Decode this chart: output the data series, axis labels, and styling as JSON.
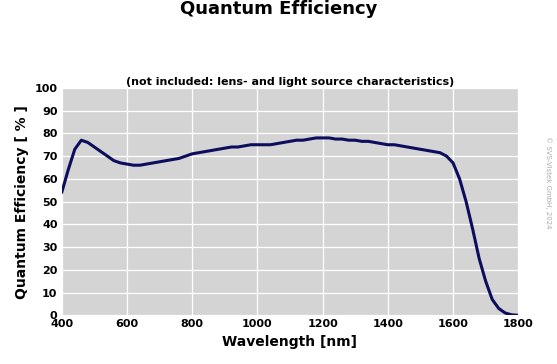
{
  "title": "Quantum Efficiency",
  "subtitle": "(not included: lens- and light source characteristics)",
  "xlabel": "Wavelength [nm]",
  "ylabel": "Quantum Efficiency [ % ]",
  "xlim": [
    400,
    1800
  ],
  "ylim": [
    0,
    100
  ],
  "xticks": [
    400,
    600,
    800,
    1000,
    1200,
    1400,
    1600,
    1800
  ],
  "yticks": [
    0,
    10,
    20,
    30,
    40,
    50,
    60,
    70,
    80,
    90,
    100
  ],
  "line_color": "#0d0d5e",
  "line_width": 2.2,
  "bg_color": "#d4d4d4",
  "fig_color": "#ffffff",
  "watermark": "© SVS-Vistek GmbH, 2024",
  "curve_x": [
    400,
    420,
    440,
    460,
    480,
    500,
    520,
    540,
    560,
    580,
    600,
    620,
    640,
    660,
    680,
    700,
    720,
    740,
    760,
    780,
    800,
    820,
    840,
    860,
    880,
    900,
    920,
    940,
    960,
    980,
    1000,
    1020,
    1040,
    1060,
    1080,
    1100,
    1120,
    1140,
    1160,
    1180,
    1200,
    1220,
    1240,
    1260,
    1280,
    1300,
    1320,
    1340,
    1360,
    1380,
    1400,
    1420,
    1440,
    1460,
    1480,
    1500,
    1520,
    1540,
    1560,
    1580,
    1600,
    1620,
    1640,
    1660,
    1680,
    1700,
    1720,
    1740,
    1760,
    1780,
    1800
  ],
  "curve_y": [
    54,
    64,
    73,
    77,
    76,
    74,
    72,
    70,
    68,
    67,
    66.5,
    66,
    66,
    66.5,
    67,
    67.5,
    68,
    68.5,
    69,
    70,
    71,
    71.5,
    72,
    72.5,
    73,
    73.5,
    74,
    74,
    74.5,
    75,
    75,
    75,
    75,
    75.5,
    76,
    76.5,
    77,
    77,
    77.5,
    78,
    78,
    78,
    77.5,
    77.5,
    77,
    77,
    76.5,
    76.5,
    76,
    75.5,
    75,
    75,
    74.5,
    74,
    73.5,
    73,
    72.5,
    72,
    71.5,
    70,
    67,
    60,
    50,
    38,
    25,
    15,
    7,
    3,
    1,
    0.2,
    0
  ]
}
